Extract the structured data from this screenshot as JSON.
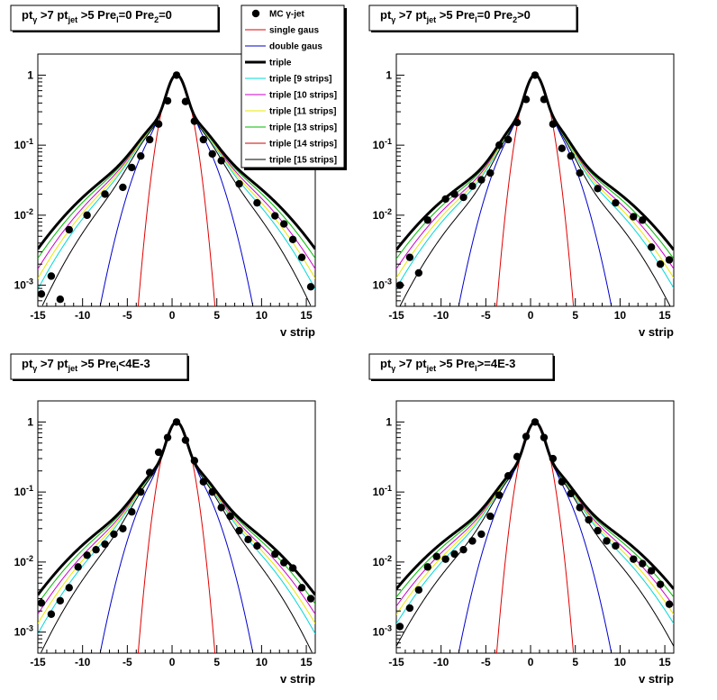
{
  "colors": {
    "mc": "#000000",
    "single": "#e00000",
    "double": "#0000cc",
    "triple": "#000000",
    "s9": "#00d8d8",
    "s10": "#cc00cc",
    "s11": "#e8e800",
    "s13": "#00bb00",
    "s14": "#cc0000",
    "s15": "#000000"
  },
  "legend": {
    "entries": [
      {
        "key": "mc",
        "label": "MC γ-jet",
        "symbol": "marker"
      },
      {
        "key": "single",
        "label": "single gaus",
        "symbol": "line"
      },
      {
        "key": "double",
        "label": "double gaus",
        "symbol": "line"
      },
      {
        "key": "triple",
        "label": "triple",
        "symbol": "thick"
      },
      {
        "key": "s9",
        "label": "triple [9 strips]",
        "symbol": "line"
      },
      {
        "key": "s10",
        "label": "triple [10 strips]",
        "symbol": "line"
      },
      {
        "key": "s11",
        "label": "triple [11 strips]",
        "symbol": "line"
      },
      {
        "key": "s13",
        "label": "triple [13 strips]",
        "symbol": "line"
      },
      {
        "key": "s14",
        "label": "triple [14 strips]",
        "symbol": "line"
      },
      {
        "key": "s15",
        "label": "triple [15 strips]",
        "symbol": "line"
      }
    ]
  },
  "chart_data": [
    {
      "type": "scatter",
      "title": {
        "pt": "pt",
        "g": "γ",
        "mid": " >7  pt",
        "jet": "jet",
        "cut": " >5 Pre",
        "s1": "l",
        "c1": "=0 Pre",
        "s2": "2",
        "c2": "=0"
      },
      "xlabel": "v strip",
      "xlim": [
        -15,
        16
      ],
      "ylim": [
        0.0005,
        2
      ],
      "log_y": true,
      "xticks": [
        -15,
        -10,
        -5,
        0,
        5,
        10,
        15
      ],
      "yticks": [
        {
          "v": 1,
          "base": "1",
          "exp": ""
        },
        {
          "v": 0.1,
          "base": "10",
          "exp": "-1"
        },
        {
          "v": 0.01,
          "base": "10",
          "exp": "-2"
        },
        {
          "v": 0.001,
          "base": "10",
          "exp": "-3"
        }
      ],
      "mc_points": {
        "x": [
          -14.6,
          -13.5,
          -12.5,
          -11.5,
          -9.5,
          -7.5,
          -5.5,
          -4.5,
          -3.5,
          -2.5,
          -1.5,
          -0.5,
          0.5,
          1.5,
          2.5,
          3.5,
          4.5,
          5.5,
          7.5,
          9.5,
          11.5,
          12.5,
          13.5,
          14.5,
          15.5
        ],
        "y": [
          0.00075,
          0.00135,
          0.00063,
          0.0062,
          0.01,
          0.02,
          0.025,
          0.048,
          0.07,
          0.12,
          0.2,
          0.43,
          1.0,
          0.42,
          0.22,
          0.12,
          0.075,
          0.06,
          0.028,
          0.015,
          0.0098,
          0.0075,
          0.0045,
          0.0025,
          0.00095
        ]
      },
      "fit": {
        "A1": 0.72,
        "s1": 0.8,
        "A2": 0.22,
        "s2": 2.5,
        "A3": 0.075,
        "s3": 6.2,
        "mu": 0.5
      }
    },
    {
      "type": "scatter",
      "title": {
        "pt": "pt",
        "g": "γ",
        "mid": " >7  pt",
        "jet": "jet",
        "cut": " >5 Pre",
        "s1": "l",
        "c1": "=0 Pre",
        "s2": "2",
        "c2": ">0"
      },
      "xlabel": "v strip",
      "xlim": [
        -15,
        16
      ],
      "ylim": [
        0.0005,
        2
      ],
      "log_y": true,
      "xticks": [
        -15,
        -10,
        -5,
        0,
        5,
        10,
        15
      ],
      "yticks": [
        {
          "v": 1,
          "base": "1",
          "exp": ""
        },
        {
          "v": 0.1,
          "base": "10",
          "exp": "-1"
        },
        {
          "v": 0.01,
          "base": "10",
          "exp": "-2"
        },
        {
          "v": 0.001,
          "base": "10",
          "exp": "-3"
        }
      ],
      "mc_points": {
        "x": [
          -14.6,
          -13.5,
          -12.5,
          -11.5,
          -9.5,
          -8.5,
          -7.5,
          -6.5,
          -5.5,
          -4.5,
          -3.5,
          -2.5,
          -1.5,
          -0.5,
          0.5,
          1.5,
          2.5,
          3.5,
          4.5,
          5.5,
          7.5,
          9.5,
          11.5,
          12.5,
          13.5,
          14.5,
          15.5
        ],
        "y": [
          0.001,
          0.0025,
          0.0015,
          0.0085,
          0.017,
          0.02,
          0.018,
          0.026,
          0.032,
          0.04,
          0.1,
          0.12,
          0.21,
          0.45,
          1.0,
          0.45,
          0.2,
          0.09,
          0.07,
          0.04,
          0.024,
          0.015,
          0.0095,
          0.0085,
          0.0035,
          0.002,
          0.0023
        ]
      },
      "fit": {
        "A1": 0.7,
        "s1": 0.8,
        "A2": 0.25,
        "s2": 2.3,
        "A3": 0.06,
        "s3": 6.4,
        "mu": 0.5
      }
    },
    {
      "type": "scatter",
      "title": {
        "pt": "pt",
        "g": "γ",
        "mid": " >7  pt",
        "jet": "jet",
        "cut": " >5 Pre",
        "s1": "l",
        "c1": "<4E-3",
        "s2": "",
        "c2": ""
      },
      "xlabel": "v strip",
      "xlim": [
        -15,
        16
      ],
      "ylim": [
        0.0005,
        2
      ],
      "log_y": true,
      "xticks": [
        -15,
        -10,
        -5,
        0,
        5,
        10,
        15
      ],
      "yticks": [
        {
          "v": 1,
          "base": "1",
          "exp": ""
        },
        {
          "v": 0.1,
          "base": "10",
          "exp": "-1"
        },
        {
          "v": 0.01,
          "base": "10",
          "exp": "-2"
        },
        {
          "v": 0.001,
          "base": "10",
          "exp": "-3"
        }
      ],
      "mc_points": {
        "x": [
          -14.6,
          -13.5,
          -12.5,
          -11.5,
          -10.5,
          -9.5,
          -8.5,
          -7.5,
          -6.5,
          -5.5,
          -4.5,
          -3.5,
          -2.5,
          -1.5,
          -0.5,
          0.5,
          1.5,
          2.5,
          3.5,
          4.5,
          5.5,
          6.5,
          7.5,
          8.5,
          9.5,
          11.5,
          12.5,
          13.5,
          14.5,
          15.5
        ],
        "y": [
          0.0026,
          0.0018,
          0.0028,
          0.0043,
          0.0085,
          0.0125,
          0.015,
          0.018,
          0.025,
          0.03,
          0.052,
          0.1,
          0.19,
          0.37,
          0.6,
          1.0,
          0.55,
          0.28,
          0.14,
          0.1,
          0.06,
          0.045,
          0.028,
          0.021,
          0.017,
          0.013,
          0.0098,
          0.0082,
          0.0043,
          0.003
        ]
      },
      "fit": {
        "A1": 0.7,
        "s1": 0.8,
        "A2": 0.23,
        "s2": 2.5,
        "A3": 0.07,
        "s3": 6.3,
        "mu": 0.5
      }
    },
    {
      "type": "scatter",
      "title": {
        "pt": "pt",
        "g": "γ",
        "mid": " >7  pt",
        "jet": "jet",
        "cut": " >5 Pre",
        "s1": "l",
        "c1": ">=4E-3",
        "s2": "",
        "c2": ""
      },
      "xlabel": "v strip",
      "xlim": [
        -15,
        16
      ],
      "ylim": [
        0.0005,
        2
      ],
      "log_y": true,
      "xticks": [
        -15,
        -10,
        -5,
        0,
        5,
        10,
        15
      ],
      "yticks": [
        {
          "v": 1,
          "base": "1",
          "exp": ""
        },
        {
          "v": 0.1,
          "base": "10",
          "exp": "-1"
        },
        {
          "v": 0.01,
          "base": "10",
          "exp": "-2"
        },
        {
          "v": 0.001,
          "base": "10",
          "exp": "-3"
        }
      ],
      "mc_points": {
        "x": [
          -14.6,
          -13.5,
          -12.5,
          -11.5,
          -10.5,
          -9.5,
          -8.5,
          -7.5,
          -6.5,
          -5.5,
          -4.5,
          -3.5,
          -2.5,
          -1.5,
          -0.5,
          0.5,
          1.5,
          2.5,
          3.5,
          4.5,
          5.5,
          6.5,
          7.5,
          8.5,
          9.5,
          11.5,
          12.5,
          13.5,
          14.5,
          15.5
        ],
        "y": [
          0.0012,
          0.0022,
          0.004,
          0.0085,
          0.012,
          0.011,
          0.013,
          0.015,
          0.02,
          0.025,
          0.045,
          0.09,
          0.17,
          0.32,
          0.62,
          1.0,
          0.6,
          0.3,
          0.14,
          0.095,
          0.06,
          0.04,
          0.028,
          0.02,
          0.017,
          0.011,
          0.0095,
          0.0075,
          0.0048,
          0.0025
        ]
      },
      "fit": {
        "A1": 0.7,
        "s1": 0.8,
        "A2": 0.23,
        "s2": 2.5,
        "A3": 0.065,
        "s3": 6.6,
        "mu": 0.5
      }
    }
  ]
}
